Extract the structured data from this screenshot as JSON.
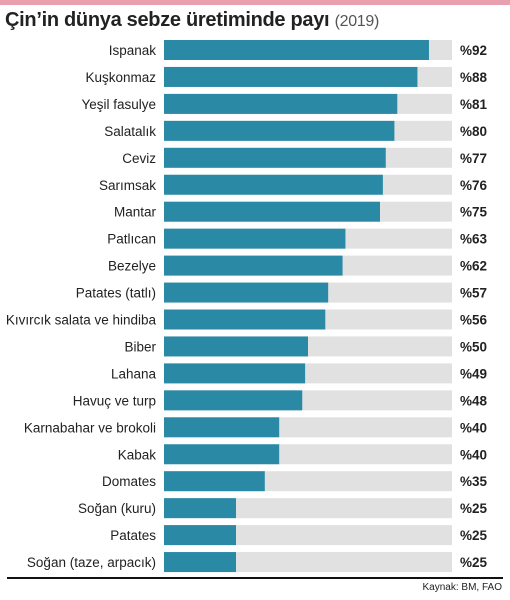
{
  "header": {
    "title": "Çin’in dünya sebze üretiminde payı",
    "year": "(2019)"
  },
  "footer": {
    "source": "Kaynak: BM, FAO"
  },
  "colors": {
    "bar": "#2a8aa6",
    "track": "#e1e1e1",
    "accent_strip": "#e8a0ae"
  },
  "chart_data": {
    "type": "bar",
    "orientation": "horizontal",
    "title": "Çin’in dünya sebze üretiminde payı (2019)",
    "value_prefix": "%",
    "xlim": [
      0,
      100
    ],
    "grid": false,
    "legend": "none",
    "categories": [
      "Ispanak",
      "Kuşkonmaz",
      "Yeşil fasulye",
      "Salatalık",
      "Ceviz",
      "Sarımsak",
      "Mantar",
      "Patlıcan",
      "Bezelye",
      "Patates (tatlı)",
      "Kıvırcık salata ve hindiba",
      "Biber",
      "Lahana",
      "Havuç ve turp",
      "Karnabahar ve brokoli",
      "Kabak",
      "Domates",
      "Soğan (kuru)",
      "Patates",
      "Soğan (taze, arpacık)"
    ],
    "values": [
      92,
      88,
      81,
      80,
      77,
      76,
      75,
      63,
      62,
      57,
      56,
      50,
      49,
      48,
      40,
      40,
      35,
      25,
      25,
      25
    ],
    "value_labels": [
      "%92",
      "%88",
      "%81",
      "%80",
      "%77",
      "%76",
      "%75",
      "%63",
      "%62",
      "%57",
      "%56",
      "%50",
      "%49",
      "%48",
      "%40",
      "%40",
      "%35",
      "%25",
      "%25",
      "%25"
    ]
  }
}
